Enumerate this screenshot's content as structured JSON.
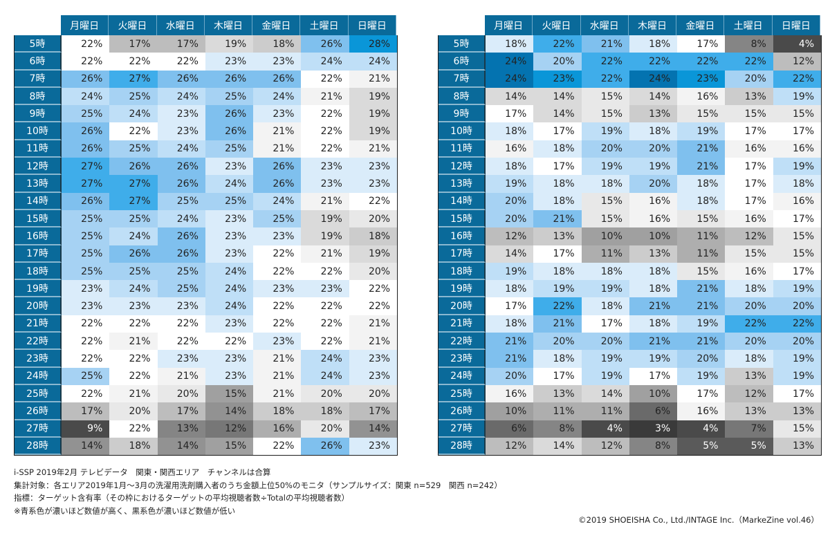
{
  "chart_data": [
    {
      "type": "heatmap",
      "columns": [
        "月曜日",
        "火曜日",
        "水曜日",
        "木曜日",
        "金曜日",
        "土曜日",
        "日曜日"
      ],
      "rows": [
        "5時",
        "6時",
        "7時",
        "8時",
        "9時",
        "10時",
        "11時",
        "12時",
        "13時",
        "14時",
        "15時",
        "16時",
        "17時",
        "18時",
        "19時",
        "20時",
        "21時",
        "22時",
        "23時",
        "24時",
        "25時",
        "26時",
        "27時",
        "28時"
      ],
      "unit": "%",
      "baseline": 22,
      "values": [
        [
          22,
          17,
          17,
          19,
          18,
          26,
          28
        ],
        [
          22,
          22,
          22,
          23,
          23,
          24,
          24
        ],
        [
          26,
          27,
          26,
          26,
          26,
          22,
          21
        ],
        [
          24,
          25,
          24,
          25,
          24,
          21,
          19
        ],
        [
          25,
          24,
          23,
          26,
          23,
          22,
          19
        ],
        [
          26,
          22,
          23,
          26,
          21,
          22,
          19
        ],
        [
          26,
          25,
          24,
          25,
          21,
          22,
          21
        ],
        [
          27,
          26,
          26,
          23,
          26,
          23,
          23
        ],
        [
          27,
          27,
          26,
          24,
          26,
          23,
          23
        ],
        [
          26,
          27,
          25,
          25,
          24,
          21,
          22
        ],
        [
          25,
          25,
          24,
          23,
          25,
          19,
          20
        ],
        [
          25,
          24,
          26,
          23,
          23,
          19,
          18
        ],
        [
          25,
          26,
          26,
          23,
          22,
          21,
          19
        ],
        [
          25,
          25,
          25,
          24,
          22,
          22,
          20
        ],
        [
          23,
          24,
          25,
          24,
          23,
          23,
          22
        ],
        [
          23,
          23,
          23,
          24,
          22,
          22,
          22
        ],
        [
          22,
          22,
          22,
          23,
          22,
          22,
          21
        ],
        [
          22,
          21,
          22,
          22,
          23,
          22,
          21
        ],
        [
          22,
          22,
          23,
          23,
          21,
          24,
          23
        ],
        [
          25,
          22,
          21,
          23,
          21,
          24,
          23
        ],
        [
          22,
          21,
          20,
          15,
          21,
          20,
          20
        ],
        [
          17,
          20,
          17,
          14,
          18,
          18,
          17
        ],
        [
          9,
          22,
          13,
          12,
          16,
          20,
          14
        ],
        [
          14,
          18,
          14,
          15,
          22,
          26,
          23
        ]
      ]
    },
    {
      "type": "heatmap",
      "columns": [
        "月曜日",
        "火曜日",
        "水曜日",
        "木曜日",
        "金曜日",
        "土曜日",
        "日曜日"
      ],
      "rows": [
        "5時",
        "6時",
        "7時",
        "8時",
        "9時",
        "10時",
        "11時",
        "12時",
        "13時",
        "14時",
        "15時",
        "16時",
        "17時",
        "18時",
        "19時",
        "20時",
        "21時",
        "22時",
        "23時",
        "24時",
        "25時",
        "26時",
        "27時",
        "28時"
      ],
      "unit": "%",
      "baseline": 17,
      "values": [
        [
          18,
          22,
          21,
          18,
          17,
          8,
          4
        ],
        [
          24,
          20,
          22,
          22,
          22,
          22,
          12
        ],
        [
          24,
          23,
          22,
          24,
          23,
          20,
          22
        ],
        [
          14,
          14,
          15,
          14,
          16,
          13,
          19
        ],
        [
          17,
          14,
          15,
          13,
          15,
          15,
          15
        ],
        [
          18,
          17,
          19,
          18,
          19,
          17,
          17
        ],
        [
          16,
          18,
          20,
          20,
          21,
          16,
          16
        ],
        [
          18,
          17,
          19,
          19,
          21,
          17,
          19
        ],
        [
          19,
          18,
          18,
          20,
          18,
          17,
          18
        ],
        [
          20,
          18,
          15,
          16,
          18,
          17,
          16
        ],
        [
          20,
          21,
          15,
          16,
          15,
          16,
          17
        ],
        [
          12,
          13,
          10,
          10,
          11,
          12,
          15
        ],
        [
          14,
          17,
          11,
          13,
          11,
          15,
          15
        ],
        [
          19,
          18,
          18,
          18,
          15,
          16,
          17
        ],
        [
          18,
          19,
          19,
          18,
          21,
          18,
          19
        ],
        [
          17,
          22,
          18,
          21,
          21,
          20,
          20
        ],
        [
          18,
          21,
          17,
          18,
          19,
          22,
          22
        ],
        [
          21,
          20,
          20,
          21,
          21,
          20,
          20
        ],
        [
          21,
          18,
          19,
          19,
          20,
          18,
          19
        ],
        [
          20,
          17,
          19,
          17,
          19,
          13,
          19
        ],
        [
          16,
          13,
          14,
          10,
          17,
          12,
          17
        ],
        [
          10,
          11,
          11,
          6,
          16,
          13,
          13
        ],
        [
          6,
          8,
          4,
          3,
          4,
          7,
          15
        ],
        [
          12,
          14,
          12,
          8,
          5,
          5,
          13
        ]
      ]
    }
  ],
  "colors": {
    "header_bg": "#0a6a9a",
    "blue_scale": [
      "#daecfa",
      "#bfdff7",
      "#a6d2f3",
      "#7fc0ee",
      "#3fadea",
      "#0a96d8",
      "#0473b0"
    ],
    "gray_scale": [
      "#f3f3f3",
      "#e8e8e8",
      "#dadada",
      "#cccccc",
      "#bdbdbd",
      "#aeaeae",
      "#a0a0a0",
      "#929292",
      "#858585",
      "#777777",
      "#6a6a6a",
      "#5a5a5a",
      "#4a4a4a",
      "#3a3a3a"
    ]
  },
  "notes": [
    "i-SSP 2019年2月 テレビデータ　関東・関西エリア　チャンネルは合算",
    "集計対象：各エリア2019年1月～3月の洗濯用洗剤購入者のうち金額上位50%のモニタ（サンプルサイズ：関東 n=529　関西 n=242）",
    "指標：ターゲット含有率（その枠におけるターゲットの平均視聴者数÷Totalの平均視聴者数）",
    "※青系色が濃いほど数値が高く、黒系色が濃いほど数値が低い"
  ],
  "copyright": "©2019 SHOEISHA Co., Ltd./INTAGE Inc.（MarkeZine vol.46）"
}
